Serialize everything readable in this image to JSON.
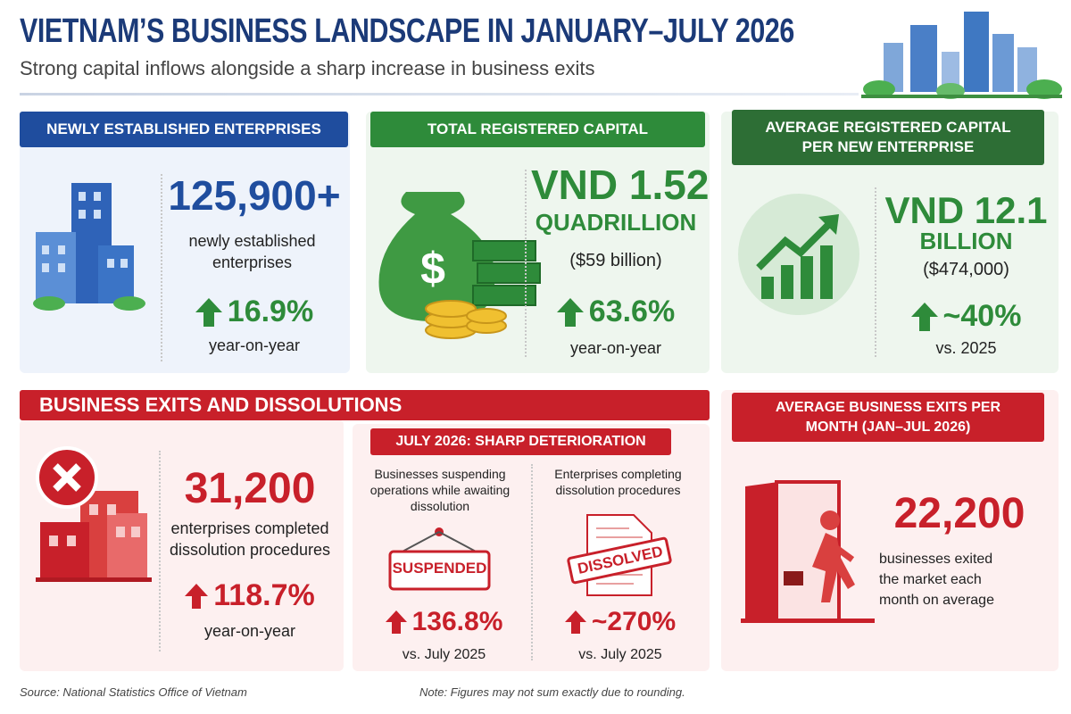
{
  "header": {
    "title": "VIETNAM’S BUSINESS LANDSCAPE IN JANUARY–JULY 2026",
    "subtitle": "Strong capital inflows alongside a sharp increase in business exits"
  },
  "cards": [
    {
      "heading": "NEWLY ESTABLISHED ENTERPRISES",
      "value": "125,900+",
      "description": "newly established enterprises",
      "change": "16.9%",
      "change_note": "year-on-year"
    },
    {
      "heading": "TOTAL REGISTERED CAPITAL",
      "value": "VND 1.52",
      "value_unit": "QUADRILLION",
      "value_note": "($59 billion)",
      "change": "63.6%",
      "change_note": "year-on-year"
    },
    {
      "heading": "AVERAGE REGISTERED CAPITAL PER NEW ENTERPRISE",
      "value": "VND 12.1",
      "value_unit": "BILLION",
      "value_note": "($474,000)",
      "change": "~40%",
      "change_note": "vs. 2025"
    }
  ],
  "exits": {
    "heading": "BUSINESS EXITS AND DISSOLUTIONS",
    "value": "31,200",
    "description": "enterprises completed dissolution procedures",
    "change": "118.7%",
    "change_note": "year-on-year",
    "july": {
      "heading": "JULY 2026: SHARP DETERIORATION",
      "items": [
        {
          "label": "Businesses suspending operations while awaiting dissolution",
          "stamp": "SUSPENDED",
          "change": "136.8%",
          "change_note": "vs. July 2025"
        },
        {
          "label": "Enterprises completing dissolution procedures",
          "stamp": "DISSOLVED",
          "change": "~270%",
          "change_note": "vs. July 2025"
        }
      ]
    }
  },
  "monthly": {
    "heading": "AVERAGE BUSINESS EXITS PER MONTH (JAN–JUL 2026)",
    "value": "22,200",
    "description": "businesses exited the market each month on average"
  },
  "footer": {
    "source": "Source: National Statistics Office of Vietnam",
    "note": "Note: Figures may not sum exactly due to rounding."
  }
}
